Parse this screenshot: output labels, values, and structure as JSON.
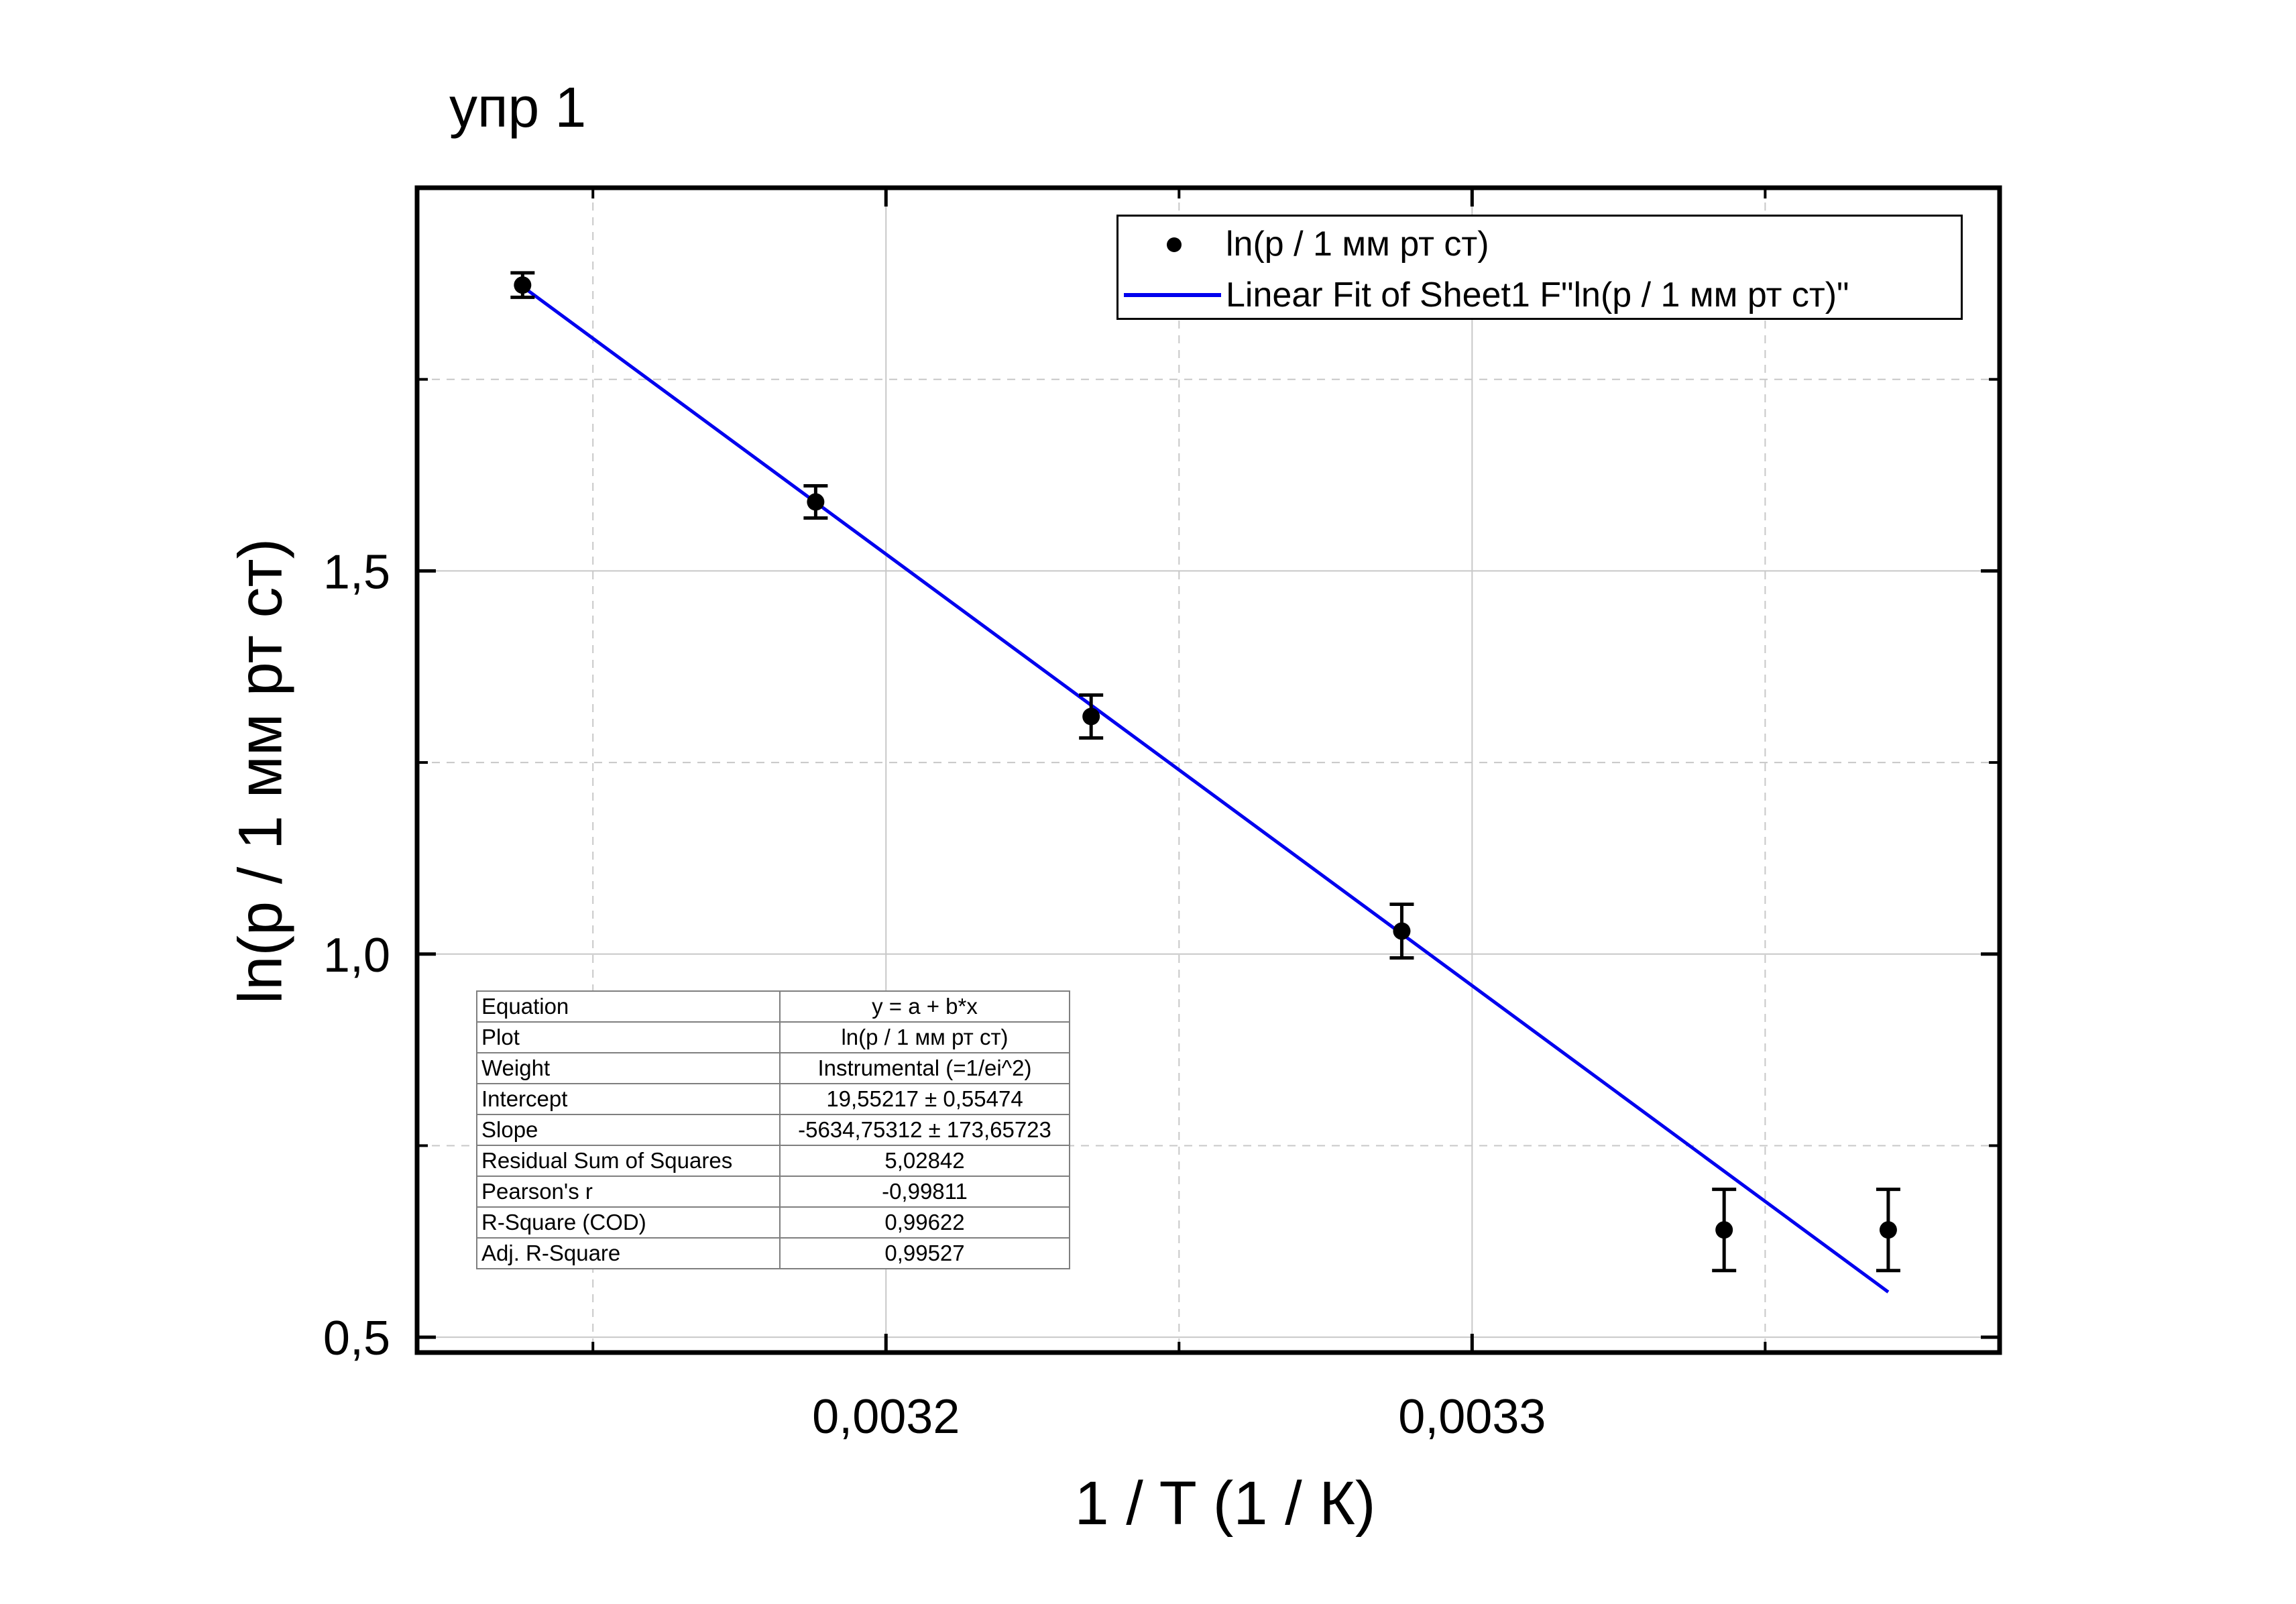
{
  "chart_data": {
    "type": "scatter",
    "title": "упр 1",
    "xlabel": "1 / T (1 / К)",
    "ylabel": "ln(p / 1 мм рт ст)",
    "xlim": [
      0.00312,
      0.00339
    ],
    "ylim": [
      0.48,
      2.0
    ],
    "x_ticks": [
      {
        "value": 0.0032,
        "label": "0,0032"
      },
      {
        "value": 0.0033,
        "label": "0,0033"
      }
    ],
    "y_ticks": [
      {
        "value": 0.5,
        "label": "0,5"
      },
      {
        "value": 1.0,
        "label": "1,0"
      },
      {
        "value": 1.5,
        "label": "1,5"
      }
    ],
    "x_minor_ticks": [
      0.00315,
      0.00325,
      0.00335
    ],
    "y_minor_ticks": [
      0.75,
      1.25,
      1.75
    ],
    "grid": true,
    "legend_position": "top-right",
    "series": [
      {
        "name": "ln(p / 1 мм рт ст)",
        "kind": "scatter-errorbar",
        "color": "#000000",
        "points": [
          {
            "x": 0.003138,
            "y": 1.873,
            "err": 0.016
          },
          {
            "x": 0.003188,
            "y": 1.59,
            "err": 0.021
          },
          {
            "x": 0.003235,
            "y": 1.31,
            "err": 0.028
          },
          {
            "x": 0.003288,
            "y": 1.03,
            "err": 0.035
          },
          {
            "x": 0.003343,
            "y": 0.64,
            "err": 0.053
          },
          {
            "x": 0.003371,
            "y": 0.64,
            "err": 0.053
          }
        ]
      },
      {
        "name": "Linear Fit of Sheet1 F\"ln(p / 1 мм рт ст)\"",
        "kind": "line",
        "color": "#0000ee",
        "points": [
          {
            "x": 0.003138,
            "y": 1.871
          },
          {
            "x": 0.003371,
            "y": 0.559
          }
        ]
      }
    ]
  },
  "fit_table": [
    {
      "key": "Equation",
      "value": "y = a + b*x"
    },
    {
      "key": "Plot",
      "value": "ln(p / 1 мм рт ст)"
    },
    {
      "key": "Weight",
      "value": "Instrumental (=1/ei^2)"
    },
    {
      "key": "Intercept",
      "value": "19,55217 ± 0,55474"
    },
    {
      "key": "Slope",
      "value": "-5634,75312 ± 173,65723"
    },
    {
      "key": "Residual Sum of Squares",
      "value": "5,02842"
    },
    {
      "key": "Pearson's r",
      "value": "-0,99811"
    },
    {
      "key": "R-Square (COD)",
      "value": "0,99622"
    },
    {
      "key": "Adj. R-Square",
      "value": "0,99527"
    }
  ]
}
